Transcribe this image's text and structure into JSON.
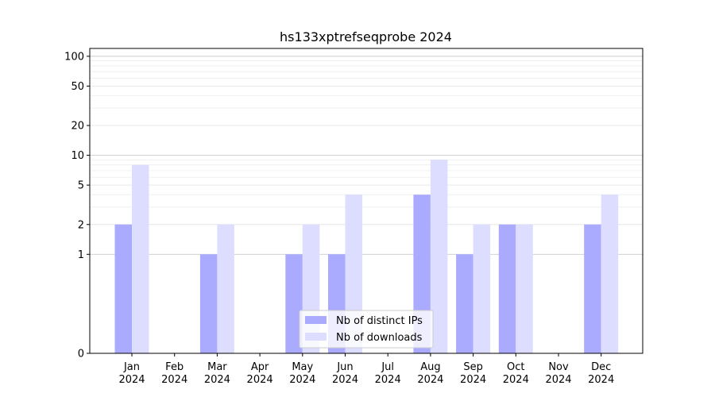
{
  "chart_data": {
    "type": "bar",
    "title": "hs133xptrefseqprobe 2024",
    "xlabel": "",
    "ylabel": "",
    "y_scale": "symlog",
    "y_ticks": [
      0,
      1,
      2,
      5,
      10,
      20,
      50,
      100
    ],
    "y_tick_labels": [
      "0",
      "1",
      "2",
      "5",
      "10",
      "20",
      "50",
      "100"
    ],
    "categories": [
      {
        "month": "Jan",
        "year": "2024"
      },
      {
        "month": "Feb",
        "year": "2024"
      },
      {
        "month": "Mar",
        "year": "2024"
      },
      {
        "month": "Apr",
        "year": "2024"
      },
      {
        "month": "May",
        "year": "2024"
      },
      {
        "month": "Jun",
        "year": "2024"
      },
      {
        "month": "Jul",
        "year": "2024"
      },
      {
        "month": "Aug",
        "year": "2024"
      },
      {
        "month": "Sep",
        "year": "2024"
      },
      {
        "month": "Oct",
        "year": "2024"
      },
      {
        "month": "Nov",
        "year": "2024"
      },
      {
        "month": "Dec",
        "year": "2024"
      }
    ],
    "series": [
      {
        "name": "Nb of distinct IPs",
        "color": "#aaaaff",
        "values": [
          2,
          0,
          1,
          0,
          1,
          1,
          0,
          4,
          1,
          2,
          0,
          2
        ]
      },
      {
        "name": "Nb of downloads",
        "color": "#ddddff",
        "values": [
          8,
          0,
          2,
          0,
          2,
          4,
          0,
          9,
          2,
          2,
          0,
          4
        ]
      }
    ],
    "grid": true,
    "legend_position": "lower-center"
  }
}
